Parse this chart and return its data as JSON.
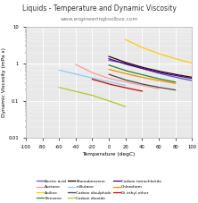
{
  "title": "Liquids - Temperature and Dynamic Viscosity",
  "subtitle": "www.engineeringtoolbox.com",
  "xlabel": "Temperature (degC)",
  "ylabel": "Dynamic Viscosity (mPa s)",
  "xlim": [
    -100,
    100
  ],
  "ylim_log": [
    0.01,
    10
  ],
  "liquids": [
    {
      "name": "Acetic acid",
      "color": "#5555bb",
      "temps": [
        0,
        20,
        40,
        60,
        80,
        100
      ],
      "visc": [
        1.22,
        1.04,
        0.74,
        0.55,
        0.43,
        0.35
      ]
    },
    {
      "name": "Acetone",
      "color": "#ff9999",
      "temps": [
        -40,
        -20,
        0,
        20,
        40,
        60
      ],
      "visc": [
        0.95,
        0.57,
        0.4,
        0.32,
        0.26,
        0.21
      ]
    },
    {
      "name": "Aniline",
      "color": "#ffcc00",
      "temps": [
        20,
        40,
        60,
        80,
        100
      ],
      "visc": [
        4.4,
        2.71,
        1.85,
        1.35,
        1.03
      ]
    },
    {
      "name": "Benzene",
      "color": "#228822",
      "temps": [
        0,
        20,
        40,
        60,
        80
      ],
      "visc": [
        0.912,
        0.649,
        0.503,
        0.392,
        0.318
      ]
    },
    {
      "name": "Bromobenzene",
      "color": "#330000",
      "temps": [
        0,
        20,
        40,
        60,
        80,
        100
      ],
      "visc": [
        1.56,
        1.074,
        0.798,
        0.627,
        0.512,
        0.43
      ]
    },
    {
      "name": "n-Butane",
      "color": "#88ccff",
      "temps": [
        -60,
        -40,
        -20,
        0,
        20
      ],
      "visc": [
        0.672,
        0.522,
        0.41,
        0.326,
        0.26
      ]
    },
    {
      "name": "Carbon disulphide",
      "color": "#444444",
      "temps": [
        0,
        20,
        40,
        60,
        80
      ],
      "visc": [
        0.514,
        0.363,
        0.282,
        0.23,
        0.196
      ]
    },
    {
      "name": "Carbon dioxide",
      "color": "#aacc22",
      "temps": [
        -60,
        -40,
        -20,
        0,
        20
      ],
      "visc": [
        0.23,
        0.18,
        0.14,
        0.1,
        0.07
      ]
    },
    {
      "name": "Carbon tetrachloride",
      "color": "#440088",
      "temps": [
        0,
        20,
        40,
        60,
        80,
        100
      ],
      "visc": [
        1.35,
        0.969,
        0.739,
        0.585,
        0.478,
        0.4
      ]
    },
    {
      "name": "Chloroform",
      "color": "#ff8800",
      "temps": [
        0,
        20,
        40,
        60,
        80
      ],
      "visc": [
        0.7,
        0.537,
        0.427,
        0.35,
        0.293
      ]
    },
    {
      "name": "Di-ethyl ether",
      "color": "#cc0000",
      "temps": [
        -20,
        0,
        20,
        40
      ],
      "visc": [
        0.38,
        0.283,
        0.224,
        0.182
      ]
    }
  ],
  "background_color": "#ffffff",
  "plot_bg_color": "#e8e8e8",
  "grid_color": "#ffffff",
  "title_fontsize": 5.5,
  "subtitle_fontsize": 4.2,
  "label_fontsize": 4.2,
  "tick_fontsize": 3.8,
  "legend_fontsize": 3.2
}
